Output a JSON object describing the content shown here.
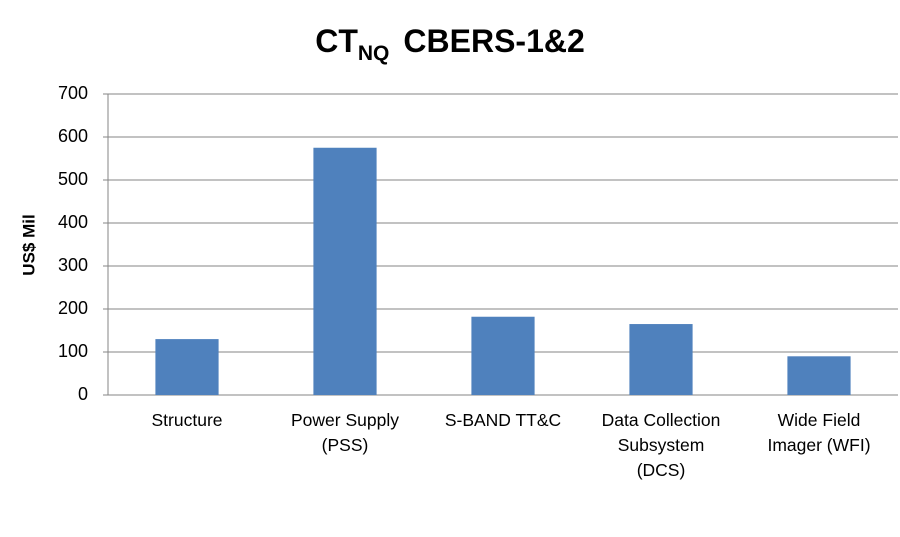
{
  "chart_data": {
    "type": "bar",
    "title": "CT",
    "title_subscript": "NQ",
    "title_rest": "CBERS-1&2",
    "y_label": "US$ Mil",
    "categories": [
      "Structure",
      "Power Supply (PSS)",
      "S-BAND TT&C",
      "Data Collection Subsystem (DCS)",
      "Wide Field Imager (WFI)"
    ],
    "values": [
      130,
      575,
      182,
      165,
      90
    ],
    "color": "#4f81bd",
    "ylim": [
      0,
      700
    ],
    "yticks": [
      0,
      100,
      200,
      300,
      400,
      500,
      600,
      700
    ],
    "grid": true
  }
}
